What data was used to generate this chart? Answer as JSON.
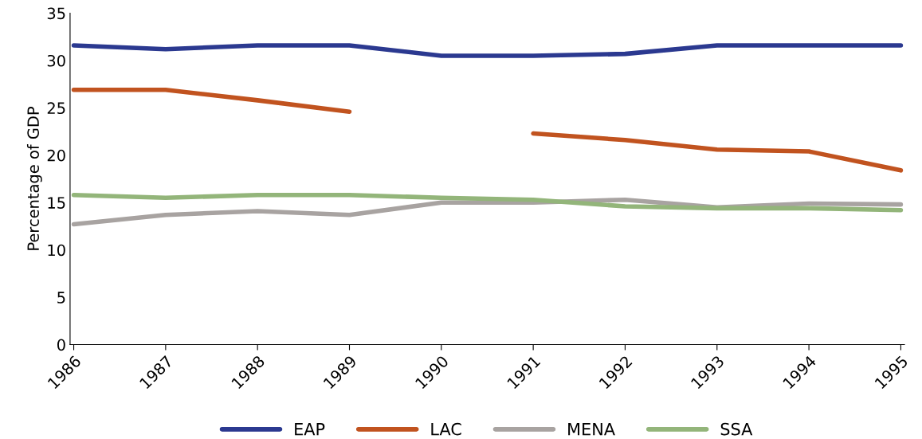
{
  "chart_data": {
    "type": "line",
    "ylabel": "Percentage of GDP",
    "categories": [
      "1986",
      "1987",
      "1988",
      "1989",
      "1990",
      "1991",
      "1992",
      "1993",
      "1994",
      "1995"
    ],
    "series": [
      {
        "name": "EAP",
        "color": "#2b3990",
        "values": [
          31.6,
          31.2,
          31.6,
          31.6,
          30.5,
          30.5,
          30.7,
          31.6,
          31.6,
          31.6
        ]
      },
      {
        "name": "LAC",
        "color": "#c1531f",
        "values": [
          26.9,
          26.9,
          25.8,
          24.6,
          null,
          22.3,
          21.6,
          20.6,
          20.4,
          18.4
        ]
      },
      {
        "name": "MENA",
        "color": "#a8a3a1",
        "values": [
          12.7,
          13.7,
          14.1,
          13.7,
          15.0,
          15.0,
          15.3,
          14.5,
          14.9,
          14.8
        ]
      },
      {
        "name": "SSA",
        "color": "#93b57a",
        "values": [
          15.8,
          15.5,
          15.8,
          15.8,
          15.5,
          15.3,
          14.6,
          14.4,
          14.4,
          14.2
        ]
      }
    ],
    "ylim": [
      0,
      35
    ],
    "yticks": [
      0,
      5,
      10,
      15,
      20,
      25,
      30,
      35
    ],
    "legend": "bottom",
    "grid": false,
    "marker": "none",
    "line_style": "solid"
  }
}
